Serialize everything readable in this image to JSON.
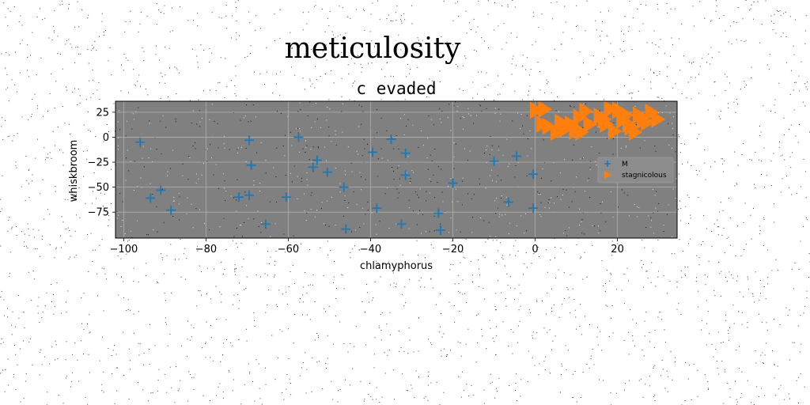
{
  "figure": {
    "suptitle": "meticulosity"
  },
  "colors": {
    "background": "#ffffff",
    "axes_face": "#808080",
    "grid": "#b0b0b0",
    "series_m": "#1f77b4",
    "series_s": "#ff7f0e"
  },
  "chart_data": {
    "type": "scatter",
    "title": "c evaded",
    "xlabel": "chlamyphorus",
    "ylabel": "whiskbroom",
    "xlim": [
      -102,
      34.5
    ],
    "ylim": [
      -101,
      36
    ],
    "xticks": [
      -100,
      -80,
      -60,
      -40,
      -20,
      0,
      20
    ],
    "xtick_labels": [
      "−100",
      "−80",
      "−60",
      "−40",
      "−20",
      "0",
      "20"
    ],
    "yticks": [
      25,
      0,
      -25,
      -50,
      -75
    ],
    "ytick_labels": [
      "25",
      "0",
      "−25",
      "−50",
      "−75"
    ],
    "grid": true,
    "legend_position": "center-right",
    "series": [
      {
        "name": "M",
        "marker": "plus",
        "color": "#1f77b4",
        "points": [
          [
            -96,
            -5
          ],
          [
            -93.5,
            -61
          ],
          [
            -91,
            -53
          ],
          [
            -88.5,
            -73
          ],
          [
            -72,
            -60
          ],
          [
            -69.5,
            -58
          ],
          [
            -69.5,
            -3
          ],
          [
            -69,
            -28
          ],
          [
            -65.5,
            -87
          ],
          [
            -60.5,
            -60
          ],
          [
            -57.5,
            0
          ],
          [
            -54,
            -30
          ],
          [
            -53,
            -23
          ],
          [
            -50.5,
            -35
          ],
          [
            -46.5,
            -50
          ],
          [
            -46,
            -92
          ],
          [
            -39.5,
            -15
          ],
          [
            -38.5,
            -71
          ],
          [
            -35,
            -2
          ],
          [
            -32.5,
            -87
          ],
          [
            -31.5,
            -16
          ],
          [
            -31.5,
            -38
          ],
          [
            -20,
            -46
          ],
          [
            -23.5,
            -76
          ],
          [
            -23,
            -93
          ],
          [
            -10,
            -24
          ],
          [
            -6.5,
            -65
          ],
          [
            -4.5,
            -19
          ],
          [
            -0.5,
            -37
          ],
          [
            -0.5,
            -71
          ]
        ]
      },
      {
        "name": "stagnicolous",
        "marker": "triangle-right",
        "color": "#ff7f0e",
        "points": [
          [
            0,
            27
          ],
          [
            1.5,
            13
          ],
          [
            2,
            28
          ],
          [
            3,
            11
          ],
          [
            5,
            5
          ],
          [
            6,
            15
          ],
          [
            7,
            8
          ],
          [
            8.5,
            13
          ],
          [
            9.5,
            6
          ],
          [
            10.5,
            20
          ],
          [
            11,
            5
          ],
          [
            12,
            26
          ],
          [
            13,
            13
          ],
          [
            15.5,
            21
          ],
          [
            16.5,
            18
          ],
          [
            17,
            13
          ],
          [
            18,
            28
          ],
          [
            19,
            6
          ],
          [
            20,
            27
          ],
          [
            21,
            17
          ],
          [
            22,
            22
          ],
          [
            22.5,
            13
          ],
          [
            23,
            10
          ],
          [
            24,
            5
          ],
          [
            25,
            22
          ],
          [
            26,
            17
          ],
          [
            27,
            15
          ],
          [
            28,
            25
          ],
          [
            29.5,
            18
          ]
        ]
      }
    ]
  }
}
